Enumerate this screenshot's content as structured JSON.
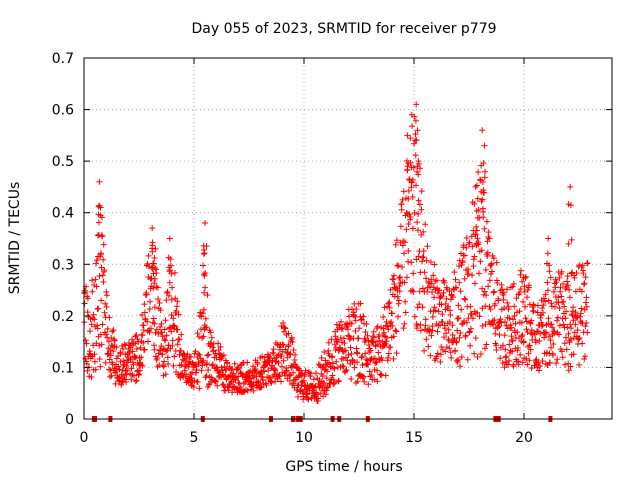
{
  "chart_data": {
    "type": "scatter",
    "title": "Day 055 of 2023, SRMTID for receiver p779",
    "xlabel": "GPS time / hours",
    "ylabel": "SRMTID / TECUs",
    "xlim": [
      0,
      24
    ],
    "ylim": [
      0,
      0.7
    ],
    "xticks": [
      0,
      5,
      10,
      15,
      20
    ],
    "yticks": [
      0,
      0.1,
      0.2,
      0.3,
      0.4,
      0.5,
      0.6,
      0.7
    ],
    "grid": true,
    "marker": "+",
    "color": "#ff0000",
    "gap_markers_hours": [
      0.45,
      0.5,
      1.2,
      5.4,
      8.5,
      9.5,
      9.7,
      9.85,
      11.3,
      11.6,
      12.9,
      18.7,
      18.85,
      21.2
    ],
    "profile": [
      [
        0.0,
        0.19,
        0.08
      ],
      [
        0.3,
        0.17,
        0.1
      ],
      [
        0.6,
        0.2,
        0.12
      ],
      [
        0.8,
        0.28,
        0.17
      ],
      [
        1.0,
        0.17,
        0.08
      ],
      [
        1.5,
        0.1,
        0.04
      ],
      [
        2.0,
        0.11,
        0.04
      ],
      [
        2.5,
        0.12,
        0.05
      ],
      [
        3.0,
        0.25,
        0.1
      ],
      [
        3.3,
        0.2,
        0.1
      ],
      [
        3.6,
        0.13,
        0.05
      ],
      [
        4.0,
        0.22,
        0.12
      ],
      [
        4.5,
        0.1,
        0.03
      ],
      [
        5.0,
        0.09,
        0.03
      ],
      [
        5.5,
        0.17,
        0.12
      ],
      [
        5.8,
        0.12,
        0.06
      ],
      [
        6.5,
        0.08,
        0.03
      ],
      [
        7.5,
        0.08,
        0.03
      ],
      [
        8.5,
        0.1,
        0.03
      ],
      [
        9.0,
        0.13,
        0.06
      ],
      [
        9.4,
        0.12,
        0.05
      ],
      [
        9.7,
        0.07,
        0.03
      ],
      [
        10.5,
        0.06,
        0.03
      ],
      [
        11.0,
        0.09,
        0.05
      ],
      [
        11.5,
        0.13,
        0.06
      ],
      [
        12.0,
        0.15,
        0.06
      ],
      [
        12.5,
        0.14,
        0.1
      ],
      [
        13.0,
        0.12,
        0.05
      ],
      [
        13.5,
        0.13,
        0.06
      ],
      [
        14.0,
        0.2,
        0.1
      ],
      [
        14.5,
        0.3,
        0.14
      ],
      [
        15.0,
        0.4,
        0.2
      ],
      [
        15.3,
        0.3,
        0.18
      ],
      [
        15.7,
        0.22,
        0.1
      ],
      [
        16.5,
        0.18,
        0.08
      ],
      [
        17.0,
        0.2,
        0.1
      ],
      [
        17.5,
        0.25,
        0.14
      ],
      [
        18.0,
        0.3,
        0.2
      ],
      [
        18.5,
        0.25,
        0.1
      ],
      [
        19.0,
        0.18,
        0.08
      ],
      [
        19.5,
        0.18,
        0.08
      ],
      [
        20.0,
        0.21,
        0.1
      ],
      [
        20.5,
        0.15,
        0.06
      ],
      [
        21.0,
        0.18,
        0.08
      ],
      [
        21.5,
        0.2,
        0.1
      ],
      [
        22.0,
        0.18,
        0.1
      ],
      [
        22.5,
        0.2,
        0.1
      ],
      [
        22.8,
        0.22,
        0.1
      ]
    ],
    "spikes": [
      [
        0.7,
        0.46
      ],
      [
        0.75,
        0.41
      ],
      [
        3.1,
        0.37
      ],
      [
        3.25,
        0.33
      ],
      [
        3.9,
        0.35
      ],
      [
        5.5,
        0.38
      ],
      [
        5.45,
        0.32
      ],
      [
        14.7,
        0.55
      ],
      [
        14.9,
        0.59
      ],
      [
        15.1,
        0.61
      ],
      [
        15.2,
        0.5
      ],
      [
        18.1,
        0.56
      ],
      [
        18.2,
        0.53
      ],
      [
        17.8,
        0.45
      ],
      [
        17.9,
        0.39
      ],
      [
        22.1,
        0.45
      ],
      [
        21.1,
        0.35
      ]
    ]
  }
}
